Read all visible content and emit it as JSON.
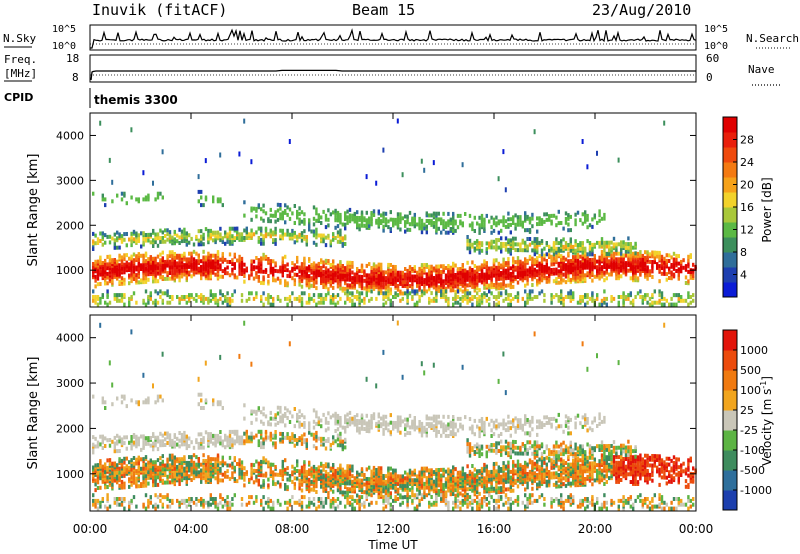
{
  "header": {
    "site": "Inuvik (fitACF)",
    "beam": "Beam 15",
    "date": "23/Aug/2010"
  },
  "colors": {
    "power": [
      "#0b1cd6",
      "#1e3fb0",
      "#2f6e9a",
      "#3c8f5c",
      "#5bb944",
      "#a9c83a",
      "#f2d22b",
      "#f6a21a",
      "#f47a12",
      "#ef4a0d",
      "#e91f0b",
      "#e00000"
    ],
    "velocity": [
      "#1c3fae",
      "#2e6f9c",
      "#3e8c5e",
      "#5cb443",
      "#c9c6b8",
      "#f1a51e",
      "#f07a10",
      "#ec4b0c",
      "#e2140a"
    ]
  },
  "chart_data": [
    {
      "type": "line",
      "name": "noise-panel",
      "left_label": "N.Sky",
      "right_label": "N.Search",
      "left_ticks": [
        "10^5",
        "10^0"
      ],
      "right_ticks": [
        "10^5",
        "10^0"
      ]
    },
    {
      "type": "line",
      "name": "freq-panel",
      "left_label_1": "Freq.",
      "left_label_2": "[MHz]",
      "right_label": "Nave",
      "left_ticks": [
        "18",
        "8"
      ],
      "right_ticks": [
        "60",
        "0"
      ]
    },
    {
      "type": "table",
      "name": "cpid-panel",
      "label": "CPID",
      "program": "themis 3300"
    },
    {
      "type": "heatmap",
      "name": "power-panel",
      "ylabel": "Slant Range [km]",
      "ylim": [
        180,
        4500
      ],
      "yticks": [
        1000,
        2000,
        3000,
        4000
      ],
      "ytick_labels": [
        "1000",
        "2000",
        "3000",
        "4000"
      ],
      "colorbar_label": "Power [dB]",
      "colorbar_ticks": [
        "28",
        "24",
        "20",
        "16",
        "12",
        "8",
        "4"
      ]
    },
    {
      "type": "heatmap",
      "name": "velocity-panel",
      "ylabel": "Slant Range [km]",
      "ylim": [
        180,
        4500
      ],
      "yticks": [
        1000,
        2000,
        3000,
        4000
      ],
      "ytick_labels": [
        "1000",
        "2000",
        "3000",
        "4000"
      ],
      "colorbar_label": "Velocity [m s",
      "colorbar_label_sup": "-1",
      "colorbar_label_end": "]",
      "colorbar_ticks": [
        "1000",
        "500",
        "100",
        "25",
        "-25",
        "-100",
        "-500",
        "-1000"
      ],
      "xlabel": "Time UT",
      "xtick_labels": [
        "00:00",
        "04:00",
        "08:00",
        "12:00",
        "16:00",
        "20:00",
        "00:00"
      ]
    }
  ]
}
